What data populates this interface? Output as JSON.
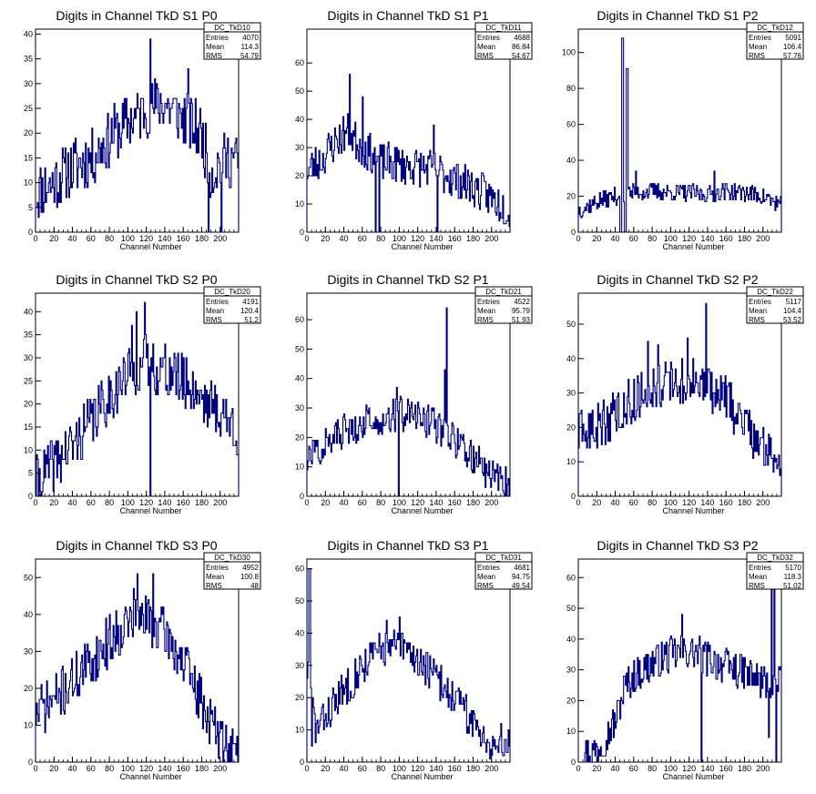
{
  "canvas": {
    "background": "#ffffff",
    "line_color": "#00007f"
  },
  "chart_data": [
    {
      "type": "histogram",
      "title": "Digits in Channel TkD S1 P0",
      "xlabel": "Channel Number",
      "xlim": [
        0,
        220
      ],
      "ylim": [
        0,
        41
      ],
      "xticks": [
        0,
        20,
        40,
        60,
        80,
        100,
        120,
        140,
        160,
        180,
        200
      ],
      "yticks": [
        0,
        5,
        10,
        15,
        20,
        25,
        30,
        35,
        40
      ],
      "stats": {
        "name": "DC_TkD10",
        "rows": [
          [
            "Entries",
            "4070"
          ],
          [
            "Mean",
            "114.3"
          ],
          [
            "RMS",
            "54.79"
          ]
        ]
      },
      "profile": [
        [
          0,
          8
        ],
        [
          10,
          9
        ],
        [
          20,
          10
        ],
        [
          40,
          13
        ],
        [
          60,
          15
        ],
        [
          80,
          19
        ],
        [
          100,
          22
        ],
        [
          120,
          25
        ],
        [
          140,
          26
        ],
        [
          160,
          23
        ],
        [
          180,
          20
        ],
        [
          190,
          12
        ],
        [
          200,
          14
        ],
        [
          215,
          15
        ],
        [
          220,
          14
        ]
      ],
      "spikes": [
        [
          124,
          39
        ],
        [
          187,
          0
        ],
        [
          201,
          0
        ],
        [
          165,
          33
        ]
      ],
      "noise": 6,
      "seed": 11
    },
    {
      "type": "histogram",
      "title": "Digits in Channel TkD S1 P1",
      "xlabel": "Channel Number",
      "xlim": [
        0,
        220
      ],
      "ylim": [
        0,
        72
      ],
      "xticks": [
        0,
        20,
        40,
        60,
        80,
        100,
        120,
        140,
        160,
        180,
        200
      ],
      "yticks": [
        0,
        10,
        20,
        30,
        40,
        50,
        60
      ],
      "stats": {
        "name": "DC_TkD11",
        "rows": [
          [
            "Entries",
            "4688"
          ],
          [
            "Mean",
            "86.84"
          ],
          [
            "RMS",
            "54.67"
          ]
        ]
      },
      "profile": [
        [
          0,
          22
        ],
        [
          15,
          25
        ],
        [
          30,
          32
        ],
        [
          45,
          36
        ],
        [
          60,
          30
        ],
        [
          80,
          25
        ],
        [
          100,
          24
        ],
        [
          120,
          23
        ],
        [
          140,
          22
        ],
        [
          160,
          19
        ],
        [
          180,
          16
        ],
        [
          200,
          12
        ],
        [
          220,
          8
        ]
      ],
      "spikes": [
        [
          46,
          56
        ],
        [
          74,
          0
        ],
        [
          78,
          0
        ],
        [
          141,
          0
        ],
        [
          137,
          38
        ],
        [
          60,
          48
        ]
      ],
      "noise": 7,
      "seed": 23
    },
    {
      "type": "histogram",
      "title": "Digits in Channel TkD S1 P2",
      "xlabel": "Channel Number",
      "xlim": [
        0,
        220
      ],
      "ylim": [
        0,
        113
      ],
      "xticks": [
        0,
        20,
        40,
        60,
        80,
        100,
        120,
        140,
        160,
        180,
        200
      ],
      "yticks": [
        0,
        20,
        40,
        60,
        80,
        100
      ],
      "stats": {
        "name": "DC_TkD12",
        "rows": [
          [
            "Entries",
            "5091"
          ],
          [
            "Mean",
            "106.4"
          ],
          [
            "RMS",
            "57.76"
          ]
        ]
      },
      "profile": [
        [
          0,
          12
        ],
        [
          20,
          17
        ],
        [
          40,
          20
        ],
        [
          60,
          22
        ],
        [
          80,
          23
        ],
        [
          100,
          22
        ],
        [
          120,
          22
        ],
        [
          140,
          21
        ],
        [
          160,
          23
        ],
        [
          180,
          22
        ],
        [
          200,
          20
        ],
        [
          220,
          15
        ]
      ],
      "spikes": [
        [
          45,
          0
        ],
        [
          46,
          0
        ],
        [
          47,
          108
        ],
        [
          48,
          108
        ],
        [
          50,
          0
        ],
        [
          51,
          0
        ],
        [
          52,
          91
        ],
        [
          53,
          91
        ],
        [
          62,
          34
        ],
        [
          147,
          34
        ]
      ],
      "noise": 5,
      "seed": 37
    },
    {
      "type": "histogram",
      "title": "Digits in Channel TkD S2 P0",
      "xlabel": "Channel Number",
      "xlim": [
        0,
        220
      ],
      "ylim": [
        0,
        44
      ],
      "xticks": [
        0,
        20,
        40,
        60,
        80,
        100,
        120,
        140,
        160,
        180,
        200
      ],
      "yticks": [
        0,
        5,
        10,
        15,
        20,
        25,
        30,
        35,
        40
      ],
      "stats": {
        "name": "DC_TkD20",
        "rows": [
          [
            "Entries",
            "4191"
          ],
          [
            "Mean",
            "120.4"
          ],
          [
            "RMS",
            "51.2"
          ]
        ]
      },
      "profile": [
        [
          0,
          3
        ],
        [
          20,
          7
        ],
        [
          40,
          11
        ],
        [
          60,
          16
        ],
        [
          80,
          22
        ],
        [
          100,
          26
        ],
        [
          120,
          29
        ],
        [
          140,
          27
        ],
        [
          160,
          25
        ],
        [
          180,
          22
        ],
        [
          200,
          18
        ],
        [
          220,
          14
        ]
      ],
      "spikes": [
        [
          124,
          0
        ],
        [
          118,
          42
        ],
        [
          109,
          40
        ],
        [
          104,
          37
        ]
      ],
      "noise": 6,
      "seed": 41
    },
    {
      "type": "histogram",
      "title": "Digits in Channel TkD S2 P1",
      "xlabel": "Channel Number",
      "xlim": [
        0,
        220
      ],
      "ylim": [
        0,
        69
      ],
      "xticks": [
        0,
        20,
        40,
        60,
        80,
        100,
        120,
        140,
        160,
        180,
        200
      ],
      "yticks": [
        0,
        10,
        20,
        30,
        40,
        50,
        60
      ],
      "stats": {
        "name": "DC_TkD21",
        "rows": [
          [
            "Entries",
            "4522"
          ],
          [
            "Mean",
            "95.79"
          ],
          [
            "RMS",
            "51.93"
          ]
        ]
      },
      "profile": [
        [
          0,
          12
        ],
        [
          20,
          18
        ],
        [
          40,
          22
        ],
        [
          60,
          25
        ],
        [
          80,
          27
        ],
        [
          100,
          28
        ],
        [
          120,
          27
        ],
        [
          140,
          24
        ],
        [
          160,
          19
        ],
        [
          180,
          13
        ],
        [
          200,
          7
        ],
        [
          220,
          4
        ]
      ],
      "spikes": [
        [
          151,
          64
        ],
        [
          149,
          43
        ],
        [
          99,
          0
        ],
        [
          97,
          37
        ]
      ],
      "noise": 6,
      "seed": 57
    },
    {
      "type": "histogram",
      "title": "Digits in Channel TkD S2 P2",
      "xlabel": "Channel Number",
      "xlim": [
        0,
        220
      ],
      "ylim": [
        0,
        59
      ],
      "xticks": [
        0,
        20,
        40,
        60,
        80,
        100,
        120,
        140,
        160,
        180,
        200
      ],
      "yticks": [
        0,
        10,
        20,
        30,
        40,
        50
      ],
      "stats": {
        "name": "DC_TkD22",
        "rows": [
          [
            "Entries",
            "5117"
          ],
          [
            "Mean",
            "104.4"
          ],
          [
            "RMS",
            "53.52"
          ]
        ]
      },
      "profile": [
        [
          0,
          17
        ],
        [
          20,
          20
        ],
        [
          40,
          24
        ],
        [
          60,
          28
        ],
        [
          80,
          32
        ],
        [
          100,
          33
        ],
        [
          120,
          33
        ],
        [
          140,
          32
        ],
        [
          160,
          28
        ],
        [
          180,
          22
        ],
        [
          200,
          14
        ],
        [
          220,
          11
        ]
      ],
      "spikes": [
        [
          138,
          56
        ],
        [
          118,
          46
        ],
        [
          75,
          45
        ],
        [
          86,
          44
        ]
      ],
      "noise": 7,
      "seed": 63
    },
    {
      "type": "histogram",
      "title": "Digits in Channel TkD S3 P0",
      "xlabel": "Channel Number",
      "xlim": [
        0,
        220
      ],
      "ylim": [
        0,
        55
      ],
      "xticks": [
        0,
        20,
        40,
        60,
        80,
        100,
        120,
        140,
        160,
        180,
        200
      ],
      "yticks": [
        0,
        10,
        20,
        30,
        40,
        50
      ],
      "stats": {
        "name": "DC_TkD30",
        "rows": [
          [
            "Entries",
            "4952"
          ],
          [
            "Mean",
            "100.8"
          ],
          [
            "RMS",
            "48"
          ]
        ]
      },
      "profile": [
        [
          0,
          13
        ],
        [
          20,
          17
        ],
        [
          40,
          22
        ],
        [
          60,
          27
        ],
        [
          80,
          33
        ],
        [
          100,
          38
        ],
        [
          120,
          39
        ],
        [
          140,
          35
        ],
        [
          160,
          27
        ],
        [
          180,
          16
        ],
        [
          200,
          6
        ],
        [
          220,
          2
        ]
      ],
      "spikes": [
        [
          110,
          51
        ],
        [
          127,
          51
        ],
        [
          106,
          47
        ]
      ],
      "noise": 7,
      "seed": 71
    },
    {
      "type": "histogram",
      "title": "Digits in Channel TkD S3 P1",
      "xlabel": "Channel Number",
      "xlim": [
        0,
        220
      ],
      "ylim": [
        0,
        63
      ],
      "xticks": [
        0,
        20,
        40,
        60,
        80,
        100,
        120,
        140,
        160,
        180,
        200
      ],
      "yticks": [
        0,
        10,
        20,
        30,
        40,
        50,
        60
      ],
      "stats": {
        "name": "DC_TkD31",
        "rows": [
          [
            "Entries",
            "4681"
          ],
          [
            "Mean",
            "94.75"
          ],
          [
            "RMS",
            "49.54"
          ]
        ]
      },
      "profile": [
        [
          0,
          30
        ],
        [
          10,
          10
        ],
        [
          20,
          14
        ],
        [
          40,
          22
        ],
        [
          60,
          30
        ],
        [
          80,
          35
        ],
        [
          100,
          36
        ],
        [
          120,
          32
        ],
        [
          140,
          26
        ],
        [
          160,
          20
        ],
        [
          180,
          12
        ],
        [
          200,
          6
        ],
        [
          220,
          6
        ]
      ],
      "spikes": [
        [
          2,
          60
        ],
        [
          3,
          60
        ],
        [
          5,
          5
        ],
        [
          86,
          44
        ],
        [
          100,
          45
        ]
      ],
      "noise": 6,
      "seed": 83
    },
    {
      "type": "histogram",
      "title": "Digits in Channel TkD S3 P2",
      "xlabel": "Channel Number",
      "xlim": [
        0,
        220
      ],
      "ylim": [
        0,
        66
      ],
      "xticks": [
        0,
        20,
        40,
        60,
        80,
        100,
        120,
        140,
        160,
        180,
        200
      ],
      "yticks": [
        0,
        10,
        20,
        30,
        40,
        50,
        60
      ],
      "stats": {
        "name": "DC_TkD32",
        "rows": [
          [
            "Entries",
            "5170"
          ],
          [
            "Mean",
            "118.3"
          ],
          [
            "RMS",
            "51.02"
          ]
        ]
      },
      "profile": [
        [
          0,
          2
        ],
        [
          20,
          4
        ],
        [
          40,
          13
        ],
        [
          50,
          24
        ],
        [
          60,
          28
        ],
        [
          80,
          32
        ],
        [
          100,
          35
        ],
        [
          120,
          36
        ],
        [
          140,
          34
        ],
        [
          160,
          31
        ],
        [
          180,
          29
        ],
        [
          200,
          26
        ],
        [
          220,
          25
        ]
      ],
      "spikes": [
        [
          209,
          60
        ],
        [
          212,
          60
        ],
        [
          214,
          0
        ],
        [
          133,
          0
        ],
        [
          112,
          48
        ],
        [
          206,
          8
        ]
      ],
      "noise": 6,
      "seed": 97
    }
  ]
}
